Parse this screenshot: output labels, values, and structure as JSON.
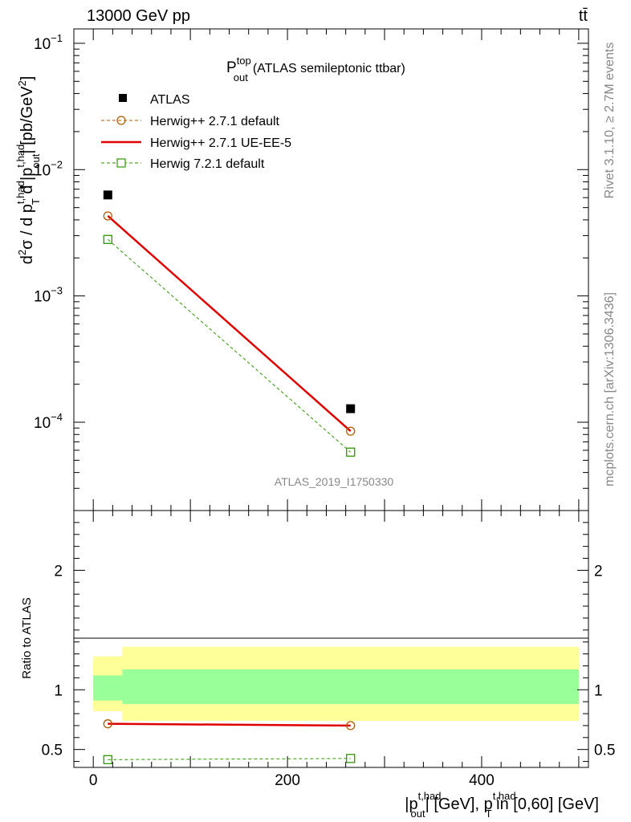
{
  "header": {
    "energy_label": "13000 GeV pp",
    "process_label": "tt̄"
  },
  "side": {
    "rivet_label": "Rivet 3.1.10, ≥ 2.7M events",
    "mcplots_label": "mcplots.cern.ch [arXiv:1306.3436]"
  },
  "chart_data": [
    {
      "type": "line",
      "panel": "main",
      "title_main": "P",
      "title_sup": "top",
      "title_sub": "out",
      "title_rest": "(ATLAS semileptonic ttbar)",
      "analysis_label": "ATLAS_2019_I1750330",
      "yscale": "log",
      "ylim": [
        2e-05,
        0.13
      ],
      "xlim": [
        -20,
        510
      ],
      "y_ticks": [
        {
          "value": 0.1,
          "mantissa": "10",
          "exponent": "−1"
        },
        {
          "value": 0.01,
          "mantissa": "10",
          "exponent": "−2"
        },
        {
          "value": 0.001,
          "mantissa": "10",
          "exponent": "−3"
        },
        {
          "value": 0.0001,
          "mantissa": "10",
          "exponent": "−4"
        }
      ],
      "legend_position": "top-left",
      "ylabel": {
        "p1": "d",
        "p1sup": "2",
        "p2": "σ /  d p",
        "p2sup": "t,had",
        "p2sub": "T",
        "p3": " d |p",
        "p3sup": "t,had",
        "p3sub": "out",
        "p4": "| [pb/GeV",
        "p4sup": "2",
        "p5": "]"
      },
      "series": [
        {
          "name": "ATLAS",
          "x": [
            15,
            265
          ],
          "y": [
            0.0063,
            0.000128
          ],
          "color": "#000000",
          "marker": "square",
          "line": "none"
        },
        {
          "name": "Herwig++ 2.7.1 default",
          "x": [
            15,
            265
          ],
          "y": [
            0.0043,
            8.5e-05
          ],
          "color": "#b05a00",
          "marker": "open-circle",
          "line": "dashed"
        },
        {
          "name": "Herwig++ 2.7.1 UE-EE-5",
          "x": [
            15,
            265
          ],
          "y": [
            0.0043,
            8.5e-05
          ],
          "color": "#e00000",
          "marker": "none",
          "line": "solid"
        },
        {
          "name": "Herwig 7.2.1 default",
          "x": [
            15,
            265
          ],
          "y": [
            0.0028,
            5.8e-05
          ],
          "color": "#2f9a00",
          "marker": "open-square",
          "line": "dashed"
        }
      ]
    },
    {
      "type": "line",
      "panel": "ratio",
      "ylabel": "Ratio to ATLAS",
      "ylim": [
        0.35,
        2.5
      ],
      "xlim": [
        -20,
        510
      ],
      "y_ticks": [
        {
          "value": 0.5,
          "label": "0.5"
        },
        {
          "value": 1,
          "label": "1"
        },
        {
          "value": 2,
          "label": "2"
        }
      ],
      "x_ticks": [
        {
          "value": 0,
          "label": "0"
        },
        {
          "value": 200,
          "label": "200"
        },
        {
          "value": 400,
          "label": "400"
        }
      ],
      "uncertainty_bands": [
        {
          "x": [
            0,
            30
          ],
          "inner": [
            0.91,
            1.12
          ],
          "outer": [
            0.82,
            1.28
          ]
        },
        {
          "x": [
            30,
            500
          ],
          "inner": [
            0.88,
            1.17
          ],
          "outer": [
            0.74,
            1.36
          ]
        }
      ],
      "series": [
        {
          "name": "Herwig++ 2.7.1 default",
          "x": [
            15,
            265
          ],
          "y": [
            0.715,
            0.7
          ],
          "color": "#b05a00",
          "marker": "open-circle",
          "line": "dashed"
        },
        {
          "name": "Herwig++ 2.7.1 UE-EE-5",
          "x": [
            15,
            265
          ],
          "y": [
            0.715,
            0.7
          ],
          "color": "#e00000",
          "marker": "none",
          "line": "solid"
        },
        {
          "name": "Herwig 7.2.1 default",
          "x": [
            15,
            265
          ],
          "y": [
            0.415,
            0.425
          ],
          "color": "#2f9a00",
          "marker": "open-square",
          "line": "dashed"
        }
      ],
      "xlabel": {
        "a": "|p",
        "asup": "t,had",
        "asub": "out",
        "b": "| [GeV], p",
        "bsup": "t,had",
        "bsub": "T",
        "c": " in [0,60] [GeV]"
      }
    }
  ],
  "colors": {
    "band_inner": "#99ff99",
    "band_outer": "#ffff99"
  }
}
